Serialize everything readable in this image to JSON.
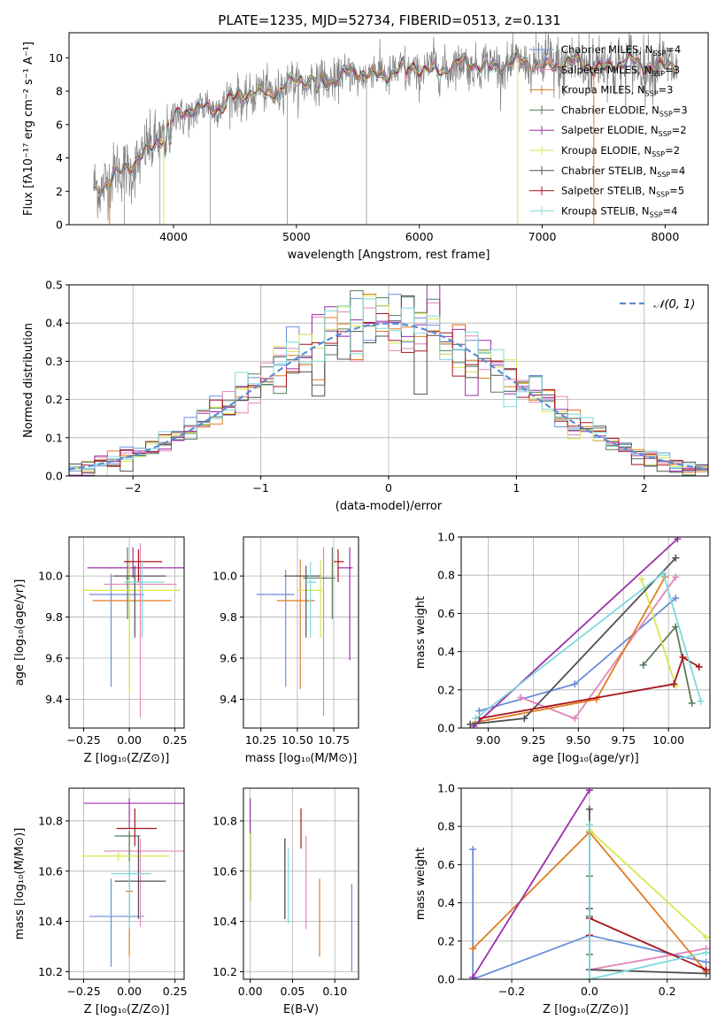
{
  "colors": {
    "chabrier_miles": "#6a8fd8",
    "salpeter_miles": "#e384b8",
    "kroupa_miles": "#e07b20",
    "chabrier_elodie": "#5a7a5a",
    "salpeter_elodie": "#9c2fa8",
    "kroupa_elodie": "#d6e64e",
    "chabrier_stelib": "#505050",
    "salpeter_stelib": "#a8141c",
    "kroupa_stelib": "#7ed8dc",
    "gray": "#808080",
    "dash": "#5b8ad6",
    "grid": "#b0b0b0"
  },
  "chart_data": [
    {
      "id": "spectrum",
      "type": "line",
      "title": "PLATE=1235, MJD=52734, FIBERID=0513, z=0.131",
      "xlabel": "wavelength [Angstrom, rest frame]",
      "ylabel": "Flux [fλ10⁻¹⁷ erg cm⁻² s⁻¹ A⁻¹]",
      "xlim": [
        3150,
        8350
      ],
      "ylim": [
        0,
        11.5
      ],
      "xticks": [
        4000,
        5000,
        6000,
        7000,
        8000
      ],
      "xtick_labels": [
        "4000",
        "5000",
        "6000",
        "7000",
        "8000"
      ],
      "yticks": [
        0,
        2,
        4,
        6,
        8,
        10
      ],
      "ytick_labels": [
        "0",
        "2",
        "4",
        "6",
        "8",
        "10"
      ],
      "grid": false,
      "legend_position": "top-right",
      "data": {
        "wavelength": [
          3350,
          3500,
          3700,
          4000,
          4300,
          4600,
          5000,
          5500,
          6000,
          6500,
          7000,
          7500,
          8100
        ],
        "flux": [
          2.1,
          2.9,
          3.6,
          6.4,
          7.1,
          7.7,
          8.5,
          9.0,
          9.3,
          9.6,
          9.6,
          9.6,
          9.6
        ]
      },
      "legend": [
        {
          "key": "chabrier_miles",
          "label_pre": "Chabrier MILES, N",
          "sub": "SSP",
          "label_post": "=4"
        },
        {
          "key": "salpeter_miles",
          "label_pre": "Salpeter MILES, N",
          "sub": "SSP",
          "label_post": "=3"
        },
        {
          "key": "kroupa_miles",
          "label_pre": "Kroupa MILES, N",
          "sub": "SSP",
          "label_post": "=3"
        },
        {
          "key": "chabrier_elodie",
          "label_pre": "Chabrier ELODIE, N",
          "sub": "SSP",
          "label_post": "=3"
        },
        {
          "key": "salpeter_elodie",
          "label_pre": "Salpeter ELODIE, N",
          "sub": "SSP",
          "label_post": "=2"
        },
        {
          "key": "kroupa_elodie",
          "label_pre": "Kroupa ELODIE, N",
          "sub": "SSP",
          "label_post": "=2"
        },
        {
          "key": "chabrier_stelib",
          "label_pre": "Chabrier STELIB, N",
          "sub": "SSP",
          "label_post": "=4"
        },
        {
          "key": "salpeter_stelib",
          "label_pre": "Salpeter STELIB, N",
          "sub": "SSP",
          "label_post": "=5"
        },
        {
          "key": "kroupa_stelib",
          "label_pre": "Kroupa STELIB, N",
          "sub": "SSP",
          "label_post": "=4"
        }
      ]
    },
    {
      "id": "residuals",
      "type": "histogram",
      "xlabel": "(data-model)/error",
      "ylabel": "Normed distribution",
      "xlim": [
        -2.5,
        2.5
      ],
      "ylim": [
        0,
        0.5
      ],
      "xticks": [
        -2,
        -1,
        0,
        1,
        2
      ],
      "xtick_labels": [
        "−2",
        "−1",
        "0",
        "1",
        "2"
      ],
      "yticks": [
        0,
        0.1,
        0.2,
        0.3,
        0.4,
        0.5
      ],
      "ytick_labels": [
        "0.0",
        "0.1",
        "0.2",
        "0.3",
        "0.4",
        "0.5"
      ],
      "grid": true,
      "legend_position": "top-right",
      "legend_label": "𝒩(0, 1)",
      "bin_width": 0.1,
      "reference_curve": "standard normal (mean 0, sd 1)"
    },
    {
      "id": "age_vs_Z",
      "type": "errorbar",
      "xlabel": "Z [log₁₀(Z/Z⊙)]",
      "ylabel": "age  [log₁₀(age/yr)]",
      "xlim": [
        -0.33,
        0.3
      ],
      "ylim": [
        9.26,
        10.19
      ],
      "xticks": [
        -0.25,
        0,
        0.25
      ],
      "xtick_labels": [
        "−0.25",
        "0.00",
        "0.25"
      ],
      "yticks": [
        9.4,
        9.6,
        9.8,
        10.0
      ],
      "ytick_labels": [
        "9.4",
        "9.6",
        "9.8",
        "10.0"
      ],
      "grid": true,
      "points": [
        {
          "key": "chabrier_miles",
          "x": -0.1,
          "xerr": [
            0.12,
            0.18
          ],
          "y": 9.91,
          "yerr": [
            0.45,
            0.1
          ]
        },
        {
          "key": "salpeter_miles",
          "x": 0.06,
          "xerr": [
            0.2,
            0.2
          ],
          "y": 9.96,
          "yerr": [
            0.65,
            0.2
          ]
        },
        {
          "key": "kroupa_miles",
          "x": 0.0,
          "xerr": [
            0.2,
            0.23
          ],
          "y": 9.88,
          "yerr": [
            0.43,
            0.2
          ]
        },
        {
          "key": "chabrier_elodie",
          "x": -0.01,
          "xerr": [
            0.01,
            0.01
          ],
          "y": 9.99,
          "yerr": [
            0.2,
            0.15
          ]
        },
        {
          "key": "salpeter_elodie",
          "x": 0.02,
          "xerr": [
            0.25,
            0.28
          ],
          "y": 10.04,
          "yerr": [
            0.05,
            0.1
          ]
        },
        {
          "key": "kroupa_elodie",
          "x": 0.0,
          "xerr": [
            0.25,
            0.28
          ],
          "y": 9.93,
          "yerr": [
            0.5,
            0.15
          ]
        },
        {
          "key": "chabrier_stelib",
          "x": 0.03,
          "xerr": [
            0.12,
            0.17
          ],
          "y": 10.0,
          "yerr": [
            0.3,
            0.05
          ]
        },
        {
          "key": "salpeter_stelib",
          "x": 0.05,
          "xerr": [
            0.08,
            0.13
          ],
          "y": 10.07,
          "yerr": [
            0.1,
            0.06
          ]
        },
        {
          "key": "kroupa_stelib",
          "x": 0.07,
          "xerr": [
            0.1,
            0.12
          ],
          "y": 9.97,
          "yerr": [
            0.27,
            0.1
          ]
        }
      ]
    },
    {
      "id": "age_vs_mass",
      "type": "errorbar",
      "xlabel": "mass [log₁₀(M/M⊙)]",
      "ylabel": "",
      "xlim": [
        10.13,
        10.92
      ],
      "ylim": [
        9.26,
        10.19
      ],
      "xticks": [
        10.25,
        10.5,
        10.75
      ],
      "xtick_labels": [
        "10.25",
        "10.50",
        "10.75"
      ],
      "yticks": [
        9.4,
        9.6,
        9.8,
        10.0
      ],
      "ytick_labels": [
        "9.4",
        "9.6",
        "9.8",
        "10.0"
      ],
      "grid": true,
      "points": [
        {
          "key": "chabrier_miles",
          "x": 10.42,
          "xerr": [
            0.2,
            0.06
          ],
          "y": 9.91,
          "yerr": [
            0.45,
            0.12
          ]
        },
        {
          "key": "salpeter_miles",
          "x": 10.68,
          "xerr": [
            0.02,
            0.02
          ],
          "y": 9.99,
          "yerr": [
            0.67,
            0.15
          ]
        },
        {
          "key": "kroupa_miles",
          "x": 10.52,
          "xerr": [
            0.16,
            0.1
          ],
          "y": 9.88,
          "yerr": [
            0.43,
            0.2
          ]
        },
        {
          "key": "chabrier_elodie",
          "x": 10.74,
          "xerr": [
            0.2,
            0.02
          ],
          "y": 9.99,
          "yerr": [
            0.2,
            0.15
          ]
        },
        {
          "key": "salpeter_elodie",
          "x": 10.86,
          "xerr": [
            0.08,
            0.02
          ],
          "y": 10.04,
          "yerr": [
            0.45,
            0.1
          ]
        },
        {
          "key": "kroupa_elodie",
          "x": 10.66,
          "xerr": [
            0.16,
            0.02
          ],
          "y": 9.93,
          "yerr": [
            0.23,
            0.15
          ]
        },
        {
          "key": "chabrier_stelib",
          "x": 10.56,
          "xerr": [
            0.15,
            0.1
          ],
          "y": 10.0,
          "yerr": [
            0.3,
            0.05
          ]
        },
        {
          "key": "salpeter_stelib",
          "x": 10.78,
          "xerr": [
            0.03,
            0.04
          ],
          "y": 10.07,
          "yerr": [
            0.1,
            0.06
          ]
        },
        {
          "key": "kroupa_stelib",
          "x": 10.59,
          "xerr": [
            0.04,
            0.04
          ],
          "y": 9.97,
          "yerr": [
            0.27,
            0.1
          ]
        }
      ]
    },
    {
      "id": "weight_vs_age",
      "type": "line",
      "xlabel": "age  [log₁₀(age/yr)]",
      "ylabel": "mass weight",
      "xlim": [
        8.85,
        10.23
      ],
      "ylim": [
        0,
        1
      ],
      "xticks": [
        9.0,
        9.25,
        9.5,
        9.75,
        10.0
      ],
      "xtick_labels": [
        "9.00",
        "9.25",
        "9.50",
        "9.75",
        "10.00"
      ],
      "yticks": [
        0,
        0.2,
        0.4,
        0.6,
        0.8,
        1.0
      ],
      "ytick_labels": [
        "0.0",
        "0.2",
        "0.4",
        "0.6",
        "0.8",
        "1.0"
      ],
      "grid": true,
      "series": [
        {
          "key": "chabrier_miles",
          "x": [
            8.95,
            9.48,
            10.04
          ],
          "y": [
            0.09,
            0.23,
            0.68
          ]
        },
        {
          "key": "salpeter_miles",
          "x": [
            9.18,
            9.48,
            10.04
          ],
          "y": [
            0.16,
            0.05,
            0.79
          ]
        },
        {
          "key": "kroupa_miles",
          "x": [
            8.93,
            9.6,
            9.98
          ],
          "y": [
            0.03,
            0.15,
            0.79
          ]
        },
        {
          "key": "chabrier_elodie",
          "x": [
            9.86,
            10.04,
            10.13
          ],
          "y": [
            0.33,
            0.53,
            0.13
          ]
        },
        {
          "key": "salpeter_elodie",
          "x": [
            8.92,
            10.05
          ],
          "y": [
            0.01,
            0.99
          ]
        },
        {
          "key": "kroupa_elodie",
          "x": [
            9.85,
            10.04
          ],
          "y": [
            0.78,
            0.22
          ]
        },
        {
          "key": "chabrier_stelib",
          "x": [
            8.9,
            9.2,
            10.04
          ],
          "y": [
            0.02,
            0.05,
            0.89
          ]
        },
        {
          "key": "salpeter_stelib",
          "x": [
            8.95,
            10.03,
            10.08,
            10.17
          ],
          "y": [
            0.05,
            0.23,
            0.37,
            0.32
          ]
        },
        {
          "key": "kroupa_stelib",
          "x": [
            8.93,
            9.97,
            10.18
          ],
          "y": [
            0.05,
            0.81,
            0.14
          ]
        }
      ]
    },
    {
      "id": "mass_vs_Z",
      "type": "errorbar",
      "xlabel": "Z [log₁₀(Z/Z⊙)]",
      "ylabel": "mass [log₁₀(M/M⊙)]",
      "xlim": [
        -0.33,
        0.3
      ],
      "ylim": [
        10.17,
        10.93
      ],
      "xticks": [
        -0.25,
        0,
        0.25
      ],
      "xtick_labels": [
        "−0.25",
        "0.00",
        "0.25"
      ],
      "yticks": [
        10.2,
        10.4,
        10.6,
        10.8
      ],
      "ytick_labels": [
        "10.2",
        "10.4",
        "10.6",
        "10.8"
      ],
      "grid": true,
      "points": [
        {
          "key": "chabrier_miles",
          "x": -0.1,
          "xerr": [
            0.12,
            0.18
          ],
          "y": 10.42,
          "yerr": [
            0.2,
            0.15
          ]
        },
        {
          "key": "salpeter_miles",
          "x": 0.06,
          "xerr": [
            0.2,
            0.24
          ],
          "y": 10.68,
          "yerr": [
            0.3,
            0.05
          ]
        },
        {
          "key": "kroupa_miles",
          "x": 0.0,
          "xerr": [
            0.02,
            0.02
          ],
          "y": 10.52,
          "yerr": [
            0.26,
            0.24
          ]
        },
        {
          "key": "chabrier_elodie",
          "x": 0.0,
          "xerr": [
            0.08,
            0.06
          ],
          "y": 10.74,
          "yerr": [
            0.33,
            0.02
          ]
        },
        {
          "key": "salpeter_elodie",
          "x": 0.0,
          "xerr": [
            0.25,
            0.3
          ],
          "y": 10.87,
          "yerr": [
            0.1,
            0.02
          ]
        },
        {
          "key": "kroupa_elodie",
          "x": -0.06,
          "xerr": [
            0.2,
            0.28
          ],
          "y": 10.66,
          "yerr": [
            0.02,
            0.02
          ]
        },
        {
          "key": "chabrier_stelib",
          "x": 0.05,
          "xerr": [
            0.13,
            0.15
          ],
          "y": 10.56,
          "yerr": [
            0.15,
            0.18
          ]
        },
        {
          "key": "salpeter_stelib",
          "x": 0.03,
          "xerr": [
            0.1,
            0.12
          ],
          "y": 10.77,
          "yerr": [
            0.07,
            0.08
          ]
        },
        {
          "key": "kroupa_stelib",
          "x": 0.0,
          "xerr": [
            0.1,
            0.12
          ],
          "y": 10.59,
          "yerr": [
            0.22,
            0.05
          ]
        }
      ]
    },
    {
      "id": "mass_vs_EBV",
      "type": "errorbar",
      "xlabel": "E(B-V)",
      "ylabel": "",
      "xlim": [
        -0.008,
        0.128
      ],
      "ylim": [
        10.17,
        10.93
      ],
      "xticks": [
        0,
        0.05,
        0.1
      ],
      "xtick_labels": [
        "0.00",
        "0.05",
        "0.10"
      ],
      "yticks": [
        10.2,
        10.4,
        10.6,
        10.8
      ],
      "ytick_labels": [
        "10.2",
        "10.4",
        "10.6",
        "10.8"
      ],
      "grid": true,
      "points": [
        {
          "key": "chabrier_miles",
          "x": 0.12,
          "y": 10.38,
          "yerr": [
            0.18,
            0.17
          ]
        },
        {
          "key": "salpeter_miles",
          "x": 0.066,
          "y": 10.55,
          "yerr": [
            0.18,
            0.19
          ]
        },
        {
          "key": "kroupa_miles",
          "x": 0.082,
          "y": 10.41,
          "yerr": [
            0.15,
            0.16
          ]
        },
        {
          "key": "chabrier_elodie",
          "x": 0.041,
          "y": 10.57,
          "yerr": [
            0.16,
            0.16
          ]
        },
        {
          "key": "salpeter_elodie",
          "x": 0.0,
          "y": 10.82,
          "yerr": [
            0.07,
            0.07
          ]
        },
        {
          "key": "kroupa_elodie",
          "x": 0.001,
          "y": 10.62,
          "yerr": [
            0.14,
            0.14
          ]
        },
        {
          "key": "chabrier_stelib",
          "x": 0.041,
          "y": 10.57,
          "yerr": [
            0.16,
            0.16
          ]
        },
        {
          "key": "salpeter_stelib",
          "x": 0.06,
          "y": 10.77,
          "yerr": [
            0.08,
            0.08
          ]
        },
        {
          "key": "kroupa_stelib",
          "x": 0.045,
          "y": 10.54,
          "yerr": [
            0.15,
            0.15
          ]
        }
      ]
    },
    {
      "id": "weight_vs_Z",
      "type": "line",
      "xlabel": "Z [log₁₀(Z/Z⊙)]",
      "ylabel": "mass weight",
      "xlim": [
        -0.33,
        0.31
      ],
      "ylim": [
        0,
        1
      ],
      "xticks": [
        -0.2,
        0,
        0.2
      ],
      "xtick_labels": [
        "−0.2",
        "0.0",
        "0.2"
      ],
      "yticks": [
        0,
        0.2,
        0.4,
        0.6,
        0.8,
        1.0
      ],
      "ytick_labels": [
        "0.0",
        "0.2",
        "0.4",
        "0.6",
        "0.8",
        "1.0"
      ],
      "grid": true,
      "series": [
        {
          "key": "chabrier_miles",
          "x": [
            -0.3,
            -0.3,
            0.0,
            0.3
          ],
          "y": [
            0.68,
            0.0,
            0.23,
            0.09
          ]
        },
        {
          "key": "salpeter_miles",
          "x": [
            0.0,
            0.3
          ],
          "y": [
            0.05,
            0.16
          ]
        },
        {
          "key": "kroupa_miles",
          "x": [
            -0.3,
            0.0,
            0.3
          ],
          "y": [
            0.16,
            0.77,
            0.04
          ]
        },
        {
          "key": "chabrier_elodie",
          "x": [
            0.0,
            0.0,
            0.0
          ],
          "y": [
            0.13,
            0.54,
            0.33
          ]
        },
        {
          "key": "salpeter_elodie",
          "x": [
            -0.3,
            0.0
          ],
          "y": [
            0.01,
            0.99
          ]
        },
        {
          "key": "kroupa_elodie",
          "x": [
            0.0,
            0.3
          ],
          "y": [
            0.78,
            0.22
          ]
        },
        {
          "key": "chabrier_stelib",
          "x": [
            0.0,
            0.0,
            0.0,
            0.3
          ],
          "y": [
            0.89,
            0.37,
            0.05,
            0.03
          ]
        },
        {
          "key": "salpeter_stelib",
          "x": [
            0.0,
            0.0,
            0.3
          ],
          "y": [
            0.23,
            0.32,
            0.05
          ]
        },
        {
          "key": "kroupa_stelib",
          "x": [
            0.0,
            0.0,
            0.3
          ],
          "y": [
            0.81,
            0.0,
            0.14
          ]
        }
      ]
    }
  ]
}
